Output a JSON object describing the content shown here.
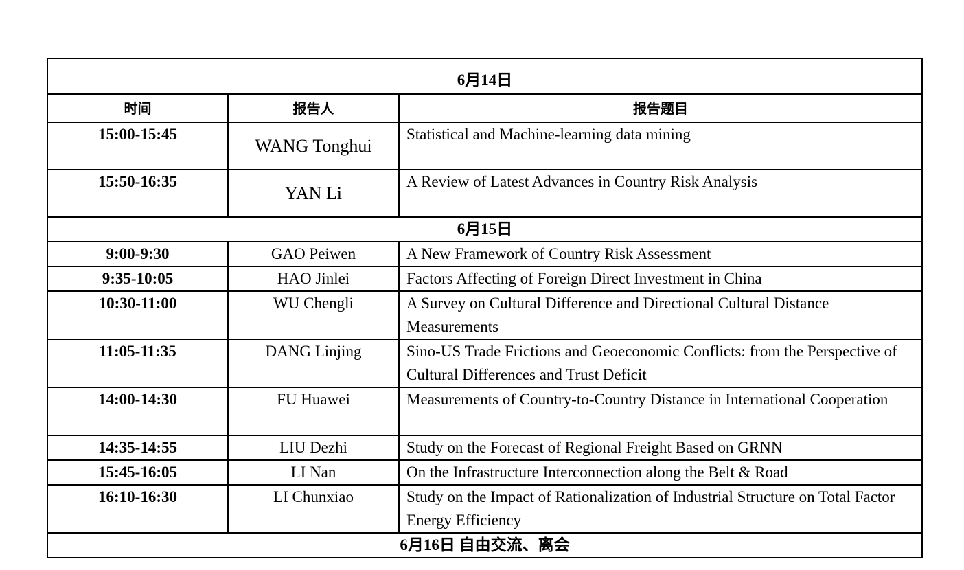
{
  "headers": {
    "time": "时间",
    "speaker": "报告人",
    "title": "报告题目"
  },
  "days": [
    {
      "label": "6月14日",
      "sessions": [
        {
          "time": "15:00-15:45",
          "speaker": "WANG Tonghui",
          "title": "Statistical and Machine-learning data mining"
        },
        {
          "time": "15:50-16:35",
          "speaker": "YAN Li",
          "title": "A Review of Latest Advances in Country Risk Analysis"
        }
      ]
    },
    {
      "label": "6月15日",
      "sessions": [
        {
          "time": "9:00-9:30",
          "speaker": "GAO Peiwen",
          "title": "A New Framework of Country Risk Assessment"
        },
        {
          "time": "9:35-10:05",
          "speaker": "HAO Jinlei",
          "title": "Factors Affecting of Foreign Direct Investment in China"
        },
        {
          "time": "10:30-11:00",
          "speaker": "WU Chengli",
          "title": "A Survey on Cultural Difference and Directional Cultural Distance Measurements"
        },
        {
          "time": "11:05-11:35",
          "speaker": "DANG Linjing",
          "title": "Sino-US Trade Frictions and Geoeconomic Conflicts: from the Perspective of Cultural Differences and Trust Deficit"
        },
        {
          "time": "14:00-14:30",
          "speaker": "FU Huawei",
          "title": "Measurements of Country-to-Country Distance in International Cooperation"
        },
        {
          "time": "14:35-14:55",
          "speaker": "LIU Dezhi",
          "title": "Study on the Forecast of Regional Freight Based on GRNN"
        },
        {
          "time": "15:45-16:05",
          "speaker": "LI Nan",
          "title": "On the Infrastructure Interconnection along the Belt & Road"
        },
        {
          "time": "16:10-16:30",
          "speaker": "LI Chunxiao",
          "title": "Study on the Impact of Rationalization of Industrial Structure on Total Factor Energy Efficiency"
        }
      ]
    },
    {
      "label": "6月16日  自由交流、离会",
      "sessions": []
    }
  ]
}
